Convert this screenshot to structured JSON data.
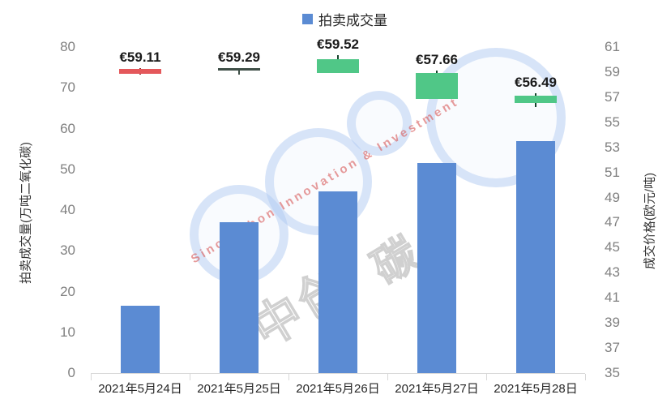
{
  "chart_data": {
    "type": "bar",
    "subtype": "combo-bar-candlestick",
    "title": "",
    "legend": [
      {
        "label": "拍卖成交量",
        "marker": "square",
        "color": "#5B8BD3"
      }
    ],
    "legend_position": "top-center",
    "grid": false,
    "categories": [
      "2021年5月24日",
      "2021年5月25日",
      "2021年5月26日",
      "2021年5月27日",
      "2021年5月28日"
    ],
    "left_axis": {
      "title": "拍卖成交量(万吨二氧化碳)",
      "min": 0,
      "max": 80,
      "step": 10,
      "ticks": [
        0,
        10,
        20,
        30,
        40,
        50,
        60,
        70,
        80
      ]
    },
    "right_axis": {
      "title": "成交价格(欧元/吨)",
      "min": 35,
      "max": 61,
      "step": 2,
      "ticks": [
        35,
        37,
        39,
        41,
        43,
        45,
        47,
        49,
        51,
        53,
        55,
        57,
        59,
        61
      ]
    },
    "series": [
      {
        "name": "拍卖成交量",
        "type": "bar",
        "axis": "left",
        "color": "#5B8BD3",
        "values": [
          16.5,
          37,
          44.5,
          51.5,
          57
        ]
      },
      {
        "name": "成交价格",
        "type": "candlestick",
        "axis": "right",
        "candles": [
          {
            "category": "2021年5月24日",
            "price_label": "€59.11",
            "price": 59.11,
            "body_high": 59.25,
            "body_low": 58.88,
            "wick_high": 59.32,
            "wick_low": 58.82,
            "color": "#E4585B",
            "wick_color": "#8E3034",
            "direction": "down"
          },
          {
            "category": "2021年5月25日",
            "price_label": "€59.29",
            "price": 59.29,
            "body_high": 59.3,
            "body_low": 59.25,
            "wick_high": 59.3,
            "wick_low": 58.8,
            "color": "#3F4F47",
            "wick_color": "#3F4F47",
            "direction": "flat"
          },
          {
            "category": "2021年5月26日",
            "price_label": "€59.52",
            "price": 59.52,
            "body_high": 60.0,
            "body_low": 58.95,
            "wick_high": 60.33,
            "wick_low": 58.95,
            "color": "#50C787",
            "wick_color": "#17452E",
            "direction": "up"
          },
          {
            "category": "2021年5月27日",
            "price_label": "€57.66",
            "price": 57.66,
            "body_high": 58.95,
            "body_low": 56.85,
            "wick_high": 59.1,
            "wick_low": 56.85,
            "color": "#50C787",
            "wick_color": "#17452E",
            "direction": "up"
          },
          {
            "category": "2021年5月28日",
            "price_label": "€56.49",
            "price": 56.49,
            "body_high": 57.12,
            "body_low": 56.55,
            "wick_high": 57.3,
            "wick_low": 56.2,
            "color": "#50C787",
            "wick_color": "#17452E",
            "direction": "up"
          }
        ]
      }
    ]
  },
  "watermark": {
    "text_en": "SinoCarbon Innovation & Investment",
    "text_zh_1": "中创",
    "text_zh_2": "碳",
    "ring_color": "rgba(158,190,236,0.38)",
    "text_en_color": "rgba(217,92,92,0.62)",
    "text_zh_color": "rgba(150,150,150,0.45)"
  },
  "colors": {
    "bar": "#5B8BD3",
    "axis_tick_text": "#808080",
    "x_label_text": "#262626",
    "axis_title_text": "#333333",
    "price_label_text": "#1A1A1A",
    "axis_line": "#D8D8D8",
    "background": "#FFFFFF"
  }
}
